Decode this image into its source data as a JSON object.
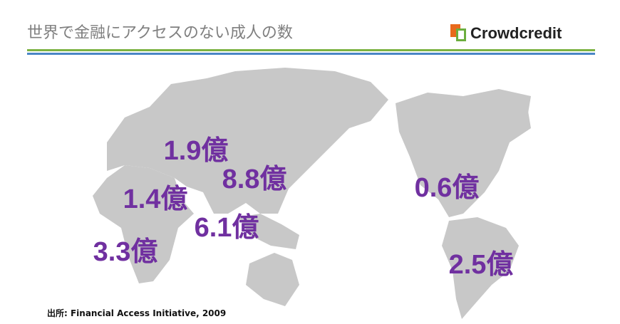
{
  "header": {
    "title": "世界で金融にアクセスのない成人の数",
    "logo": "Crowdcredit"
  },
  "labels": [
    "1.9億",
    "8.8億",
    "1.4億",
    "6.1億",
    "3.3億",
    "0.6億",
    "2.5億"
  ],
  "source": "出所: Financial Access Initiative, 2009"
}
